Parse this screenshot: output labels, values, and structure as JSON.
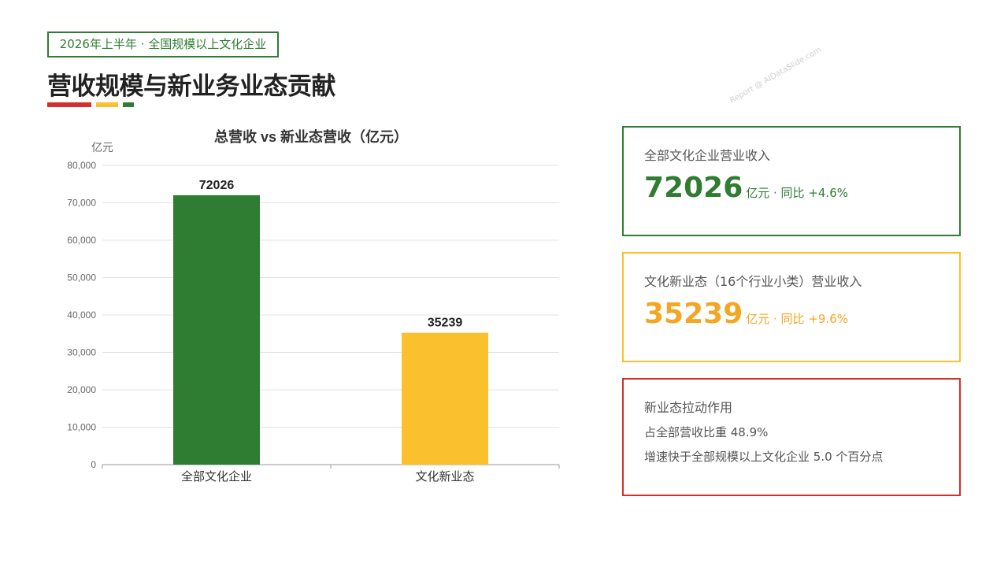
{
  "header": {
    "tag": "2026年上半年 · 全国规模以上文化企业",
    "title": "营收规模与新业务业态贡献",
    "watermark": "Report @ AIDataSlide.com"
  },
  "colors": {
    "green": "#2e7d32",
    "yellow": "#fbc02d",
    "red": "#d32f2f"
  },
  "chart_data": {
    "type": "bar",
    "title": "总营收 vs 新业态营收（亿元）",
    "ylabel": "亿元",
    "xlabel": "",
    "categories": [
      "全部文化企业",
      "文化新业态"
    ],
    "values": [
      72026,
      35239
    ],
    "bar_colors": [
      "#2e7d32",
      "#fbc02d"
    ],
    "ylim": [
      0,
      80000
    ],
    "yticks": [
      0,
      10000,
      20000,
      30000,
      40000,
      50000,
      60000,
      70000,
      80000
    ],
    "ytick_labels": [
      "0",
      "10,000",
      "20,000",
      "30,000",
      "40,000",
      "50,000",
      "60,000",
      "70,000",
      "80,000"
    ],
    "data_labels": [
      "72026",
      "35239"
    ],
    "grid": true
  },
  "cards": {
    "total": {
      "label": "全部文化企业营业收入",
      "value": "72026",
      "unit": "亿元 · 同比 +4.6%"
    },
    "new_format": {
      "label": "文化新业态（16个行业小类）营业收入",
      "value": "35239",
      "unit": "亿元 · 同比 +9.6%"
    },
    "impact": {
      "label": "新业态拉动作用",
      "line1": "占全部营收比重 48.9%",
      "line2": "增速快于全部规模以上文化企业 5.0 个百分点"
    }
  }
}
